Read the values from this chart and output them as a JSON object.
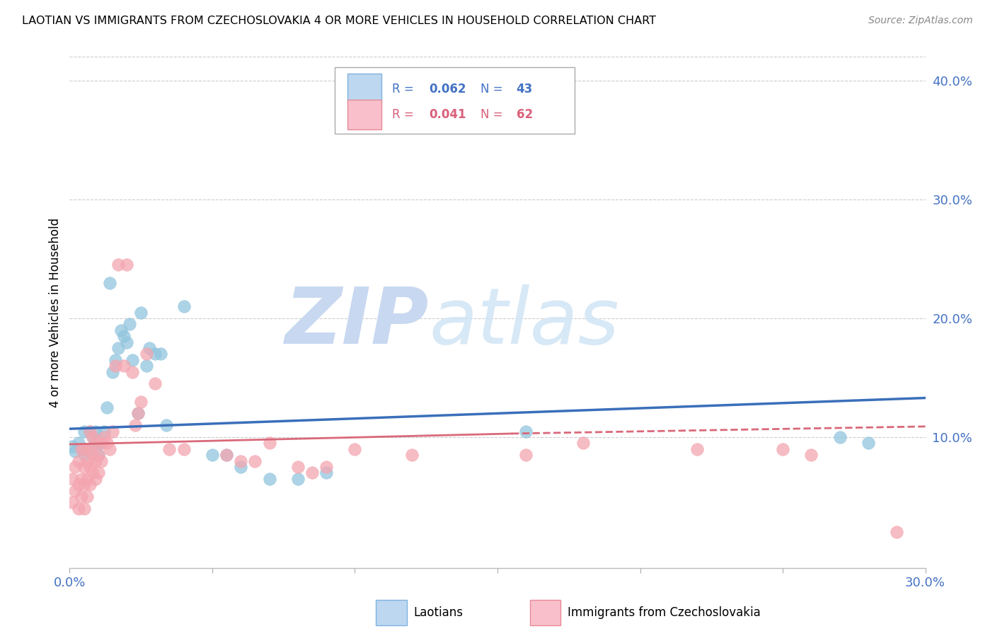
{
  "title": "LAOTIAN VS IMMIGRANTS FROM CZECHOSLOVAKIA 4 OR MORE VEHICLES IN HOUSEHOLD CORRELATION CHART",
  "source": "Source: ZipAtlas.com",
  "ylabel": "4 or more Vehicles in Household",
  "legend_labels": [
    "Laotians",
    "Immigrants from Czechoslovakia"
  ],
  "r_values": [
    0.062,
    0.041
  ],
  "n_values": [
    43,
    62
  ],
  "blue_color": "#92c5de",
  "pink_color": "#f4a6b0",
  "blue_line_color": "#3a6fba",
  "pink_line_color": "#d9697a",
  "axis_label_color": "#4472c4",
  "xmin": 0.0,
  "xmax": 0.3,
  "ymin": -0.01,
  "ymax": 0.42,
  "blue_scatter_x": [
    0.001,
    0.002,
    0.003,
    0.004,
    0.005,
    0.005,
    0.006,
    0.007,
    0.007,
    0.008,
    0.009,
    0.009,
    0.01,
    0.01,
    0.011,
    0.012,
    0.013,
    0.014,
    0.015,
    0.016,
    0.017,
    0.018,
    0.019,
    0.02,
    0.021,
    0.022,
    0.024,
    0.025,
    0.027,
    0.028,
    0.03,
    0.032,
    0.034,
    0.04,
    0.05,
    0.055,
    0.06,
    0.07,
    0.08,
    0.09,
    0.16,
    0.27,
    0.28
  ],
  "blue_scatter_y": [
    0.092,
    0.088,
    0.095,
    0.09,
    0.085,
    0.105,
    0.09,
    0.09,
    0.105,
    0.1,
    0.095,
    0.105,
    0.095,
    0.085,
    0.095,
    0.105,
    0.125,
    0.23,
    0.155,
    0.165,
    0.175,
    0.19,
    0.185,
    0.18,
    0.195,
    0.165,
    0.12,
    0.205,
    0.16,
    0.175,
    0.17,
    0.17,
    0.11,
    0.21,
    0.085,
    0.085,
    0.075,
    0.065,
    0.065,
    0.07,
    0.105,
    0.1,
    0.095
  ],
  "pink_scatter_x": [
    0.001,
    0.001,
    0.002,
    0.002,
    0.003,
    0.003,
    0.003,
    0.004,
    0.004,
    0.004,
    0.005,
    0.005,
    0.005,
    0.005,
    0.006,
    0.006,
    0.006,
    0.007,
    0.007,
    0.007,
    0.007,
    0.008,
    0.008,
    0.008,
    0.009,
    0.009,
    0.009,
    0.01,
    0.01,
    0.011,
    0.011,
    0.012,
    0.013,
    0.014,
    0.015,
    0.016,
    0.017,
    0.019,
    0.02,
    0.022,
    0.023,
    0.024,
    0.025,
    0.027,
    0.03,
    0.035,
    0.04,
    0.055,
    0.06,
    0.065,
    0.07,
    0.08,
    0.085,
    0.09,
    0.1,
    0.12,
    0.16,
    0.18,
    0.22,
    0.25,
    0.26,
    0.29
  ],
  "pink_scatter_y": [
    0.065,
    0.045,
    0.055,
    0.075,
    0.04,
    0.06,
    0.08,
    0.05,
    0.065,
    0.09,
    0.04,
    0.06,
    0.075,
    0.09,
    0.05,
    0.065,
    0.08,
    0.06,
    0.075,
    0.09,
    0.105,
    0.07,
    0.085,
    0.1,
    0.065,
    0.08,
    0.095,
    0.07,
    0.085,
    0.08,
    0.095,
    0.1,
    0.095,
    0.09,
    0.105,
    0.16,
    0.245,
    0.16,
    0.245,
    0.155,
    0.11,
    0.12,
    0.13,
    0.17,
    0.145,
    0.09,
    0.09,
    0.085,
    0.08,
    0.08,
    0.095,
    0.075,
    0.07,
    0.075,
    0.09,
    0.085,
    0.085,
    0.095,
    0.09,
    0.09,
    0.085,
    0.02
  ],
  "blue_trendline": {
    "x_start": 0.0,
    "x_end": 0.3,
    "y_start": 0.107,
    "y_end": 0.133
  },
  "pink_trendline_solid": {
    "x_start": 0.0,
    "x_end": 0.155,
    "y_start": 0.094,
    "y_end": 0.103
  },
  "pink_trendline_dashed": {
    "x_start": 0.155,
    "x_end": 0.3,
    "y_start": 0.103,
    "y_end": 0.109
  },
  "watermark_zip": "ZIP",
  "watermark_atlas": "atlas",
  "watermark_color": "#c8d8f0",
  "grid_color": "#cccccc",
  "background_color": "#ffffff",
  "fig_width": 14.06,
  "fig_height": 8.92,
  "dpi": 100
}
